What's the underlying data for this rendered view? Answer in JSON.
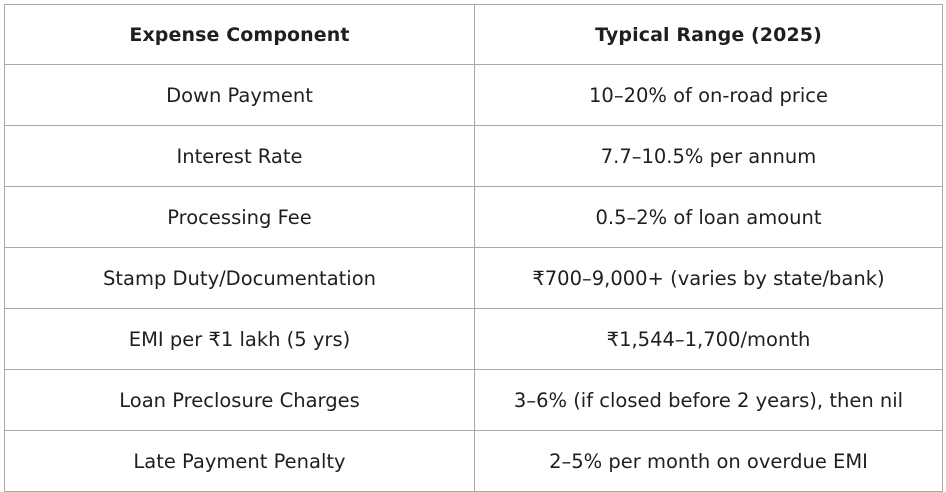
{
  "table": {
    "headers": [
      "Expense Component",
      "Typical Range (2025)"
    ],
    "rows": [
      [
        "Down Payment",
        "10–20% of on-road price"
      ],
      [
        "Interest Rate",
        "7.7–10.5% per annum"
      ],
      [
        "Processing Fee",
        "0.5–2% of loan amount"
      ],
      [
        "Stamp Duty/Documentation",
        "₹700–9,000+ (varies by state/bank)"
      ],
      [
        "EMI per ₹1 lakh (5 yrs)",
        "₹1,544–1,700/month"
      ],
      [
        "Loan Preclosure Charges",
        "3–6% (if closed before 2 years), then nil"
      ],
      [
        "Late Payment Penalty",
        "2–5% per month on overdue EMI"
      ]
    ]
  }
}
